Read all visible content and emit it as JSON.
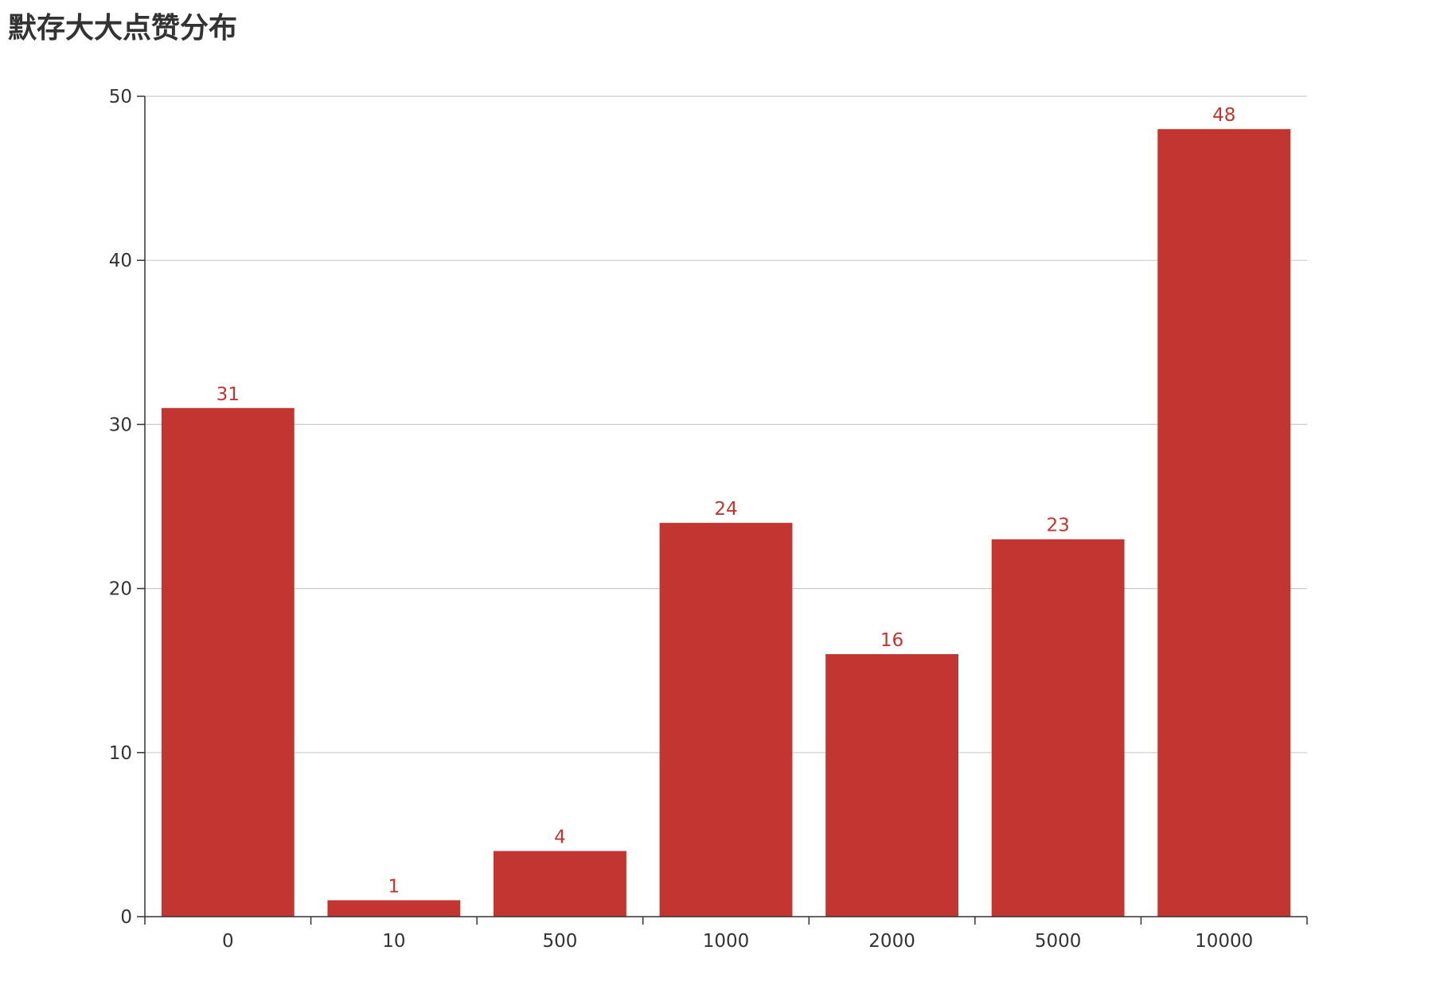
{
  "chart_data": {
    "type": "bar",
    "title": "默存大大点赞分布",
    "categories": [
      "0",
      "10",
      "500",
      "1000",
      "2000",
      "5000",
      "10000"
    ],
    "values": [
      31,
      1,
      4,
      24,
      16,
      23,
      48
    ],
    "ylim": [
      0,
      50
    ],
    "yticks": [
      0,
      10,
      20,
      30,
      40,
      50
    ],
    "xlabel": "",
    "ylabel": "",
    "grid": "horizontal",
    "show_value_labels": true,
    "colors": {
      "bar": "#c23531",
      "label": "#c23531",
      "grid": "#cccccc",
      "axis": "#333333",
      "title": "#333333"
    }
  }
}
